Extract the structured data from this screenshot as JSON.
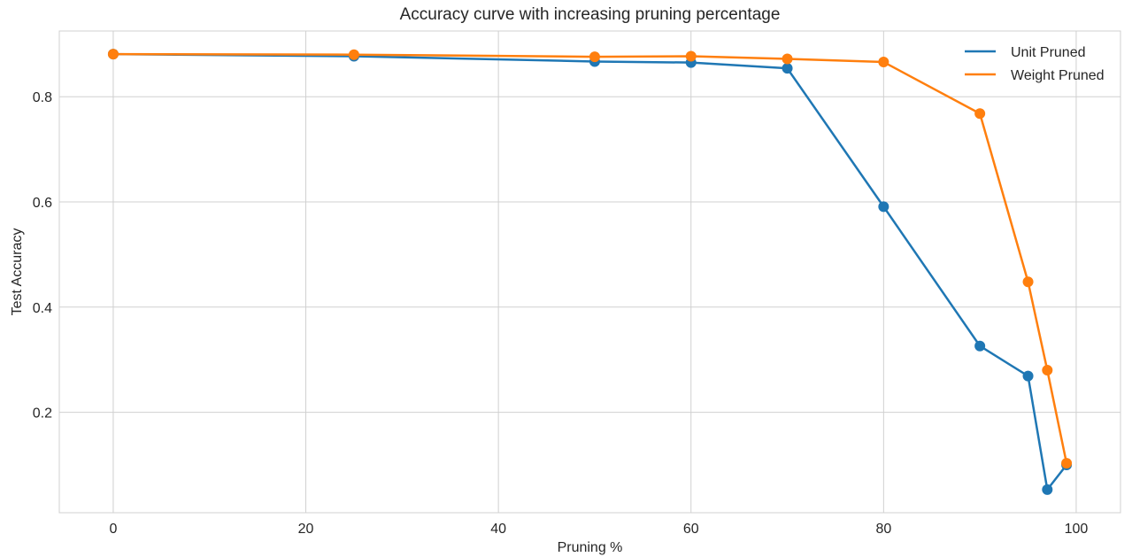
{
  "chart_data": {
    "type": "line",
    "title": "Accuracy curve with increasing pruning percentage",
    "xlabel": "Pruning %",
    "ylabel": "Test Accuracy",
    "xlim": [
      -5.6,
      104.6
    ],
    "ylim": [
      0.009,
      0.925
    ],
    "xticks": [
      0,
      20,
      40,
      60,
      80,
      100
    ],
    "yticks": [
      0.2,
      0.4,
      0.6,
      0.8
    ],
    "xtick_labels": [
      "0",
      "20",
      "40",
      "60",
      "80",
      "100"
    ],
    "ytick_labels": [
      "0.2",
      "0.4",
      "0.6",
      "0.8"
    ],
    "grid": true,
    "legend_position": "top-right",
    "x": [
      0,
      25,
      50,
      60,
      70,
      80,
      90,
      95,
      97,
      99
    ],
    "series": [
      {
        "name": "Unit Pruned",
        "color": "#1f77b4",
        "values": [
          0.881,
          0.877,
          0.867,
          0.865,
          0.854,
          0.591,
          0.326,
          0.269,
          0.053,
          0.1
        ]
      },
      {
        "name": "Weight Pruned",
        "color": "#ff7f0e",
        "values": [
          0.881,
          0.88,
          0.876,
          0.877,
          0.872,
          0.866,
          0.768,
          0.448,
          0.28,
          0.103
        ]
      }
    ]
  }
}
